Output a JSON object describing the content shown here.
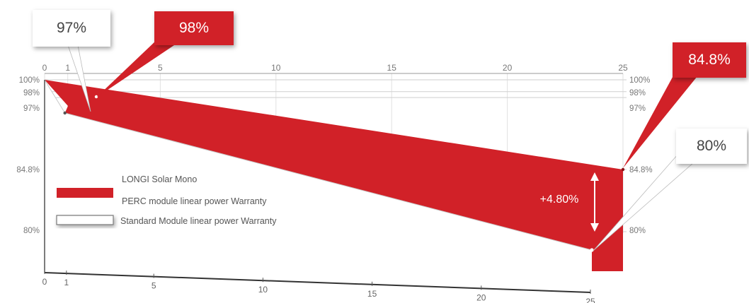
{
  "chart_data": {
    "type": "area",
    "top_axis_ticks": [
      "0",
      "1",
      "5",
      "10",
      "15",
      "20",
      "25"
    ],
    "bottom_axis_ticks": [
      "0",
      "1",
      "5",
      "10",
      "15",
      "20",
      "25"
    ],
    "left_ticks": [
      "100%",
      "98%",
      "97%",
      "84.8%",
      "80%"
    ],
    "right_ticks": [
      "100%",
      "98%",
      "97%",
      "84.8%",
      "80%"
    ],
    "xlim": [
      0,
      25
    ],
    "series": [
      {
        "name": "LONGi Solar Mono PERC module linear power Warranty",
        "color": "#d12128",
        "x": [
          0,
          1,
          25
        ],
        "y": [
          100,
          98,
          84.8
        ]
      },
      {
        "name": "Standard Module linear power Warranty",
        "color": "#ffffff",
        "x": [
          0,
          1,
          25
        ],
        "y": [
          100,
          97,
          80
        ]
      }
    ],
    "legend": {
      "red_label_line1": "LONGI Solar Mono",
      "red_label_line2": "PERC module linear power Warranty",
      "white_label": "Standard Module linear power Warranty",
      "placement": "left"
    },
    "annotations": {
      "difference": "+4.80%",
      "callout_97": "97%",
      "callout_98": "98%",
      "callout_848": "84.8%",
      "callout_80": "80%"
    }
  }
}
